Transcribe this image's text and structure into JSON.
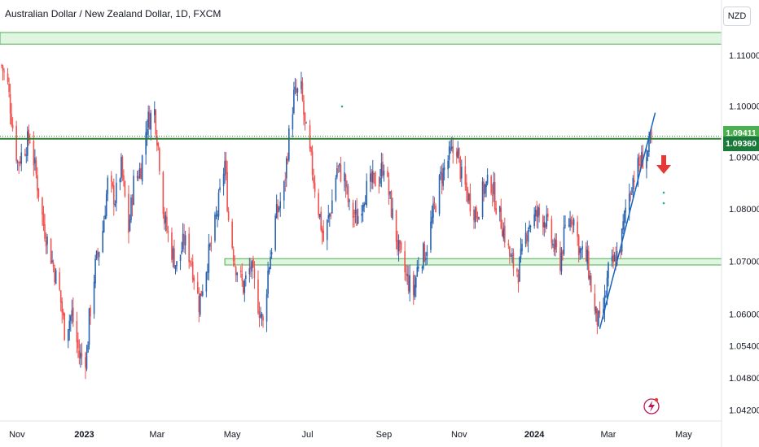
{
  "header": {
    "title": "Australian Dollar / New Zealand Dollar, 1D, FXCM",
    "currency_button": "NZD"
  },
  "colors": {
    "up": "#2a64b0",
    "down": "#ef5350",
    "zone_fill": "#dff5df",
    "zone_stroke": "#4caf50",
    "resistance_line": "#2e7d32",
    "trendline": "#1565c0",
    "arrow": "#e53935",
    "label_green_light": "#4caf50",
    "label_green_dark": "#1b7a3a"
  },
  "chart_data": {
    "type": "candlestick",
    "symbol": "AUDNZD",
    "timeframe": "1D",
    "source": "FXCM",
    "price_scale": "log",
    "y_range": [
      1.042,
      1.115
    ],
    "y_ticks": [
      "1.11000",
      "1.10000",
      "1.09000",
      "1.08000",
      "1.07000",
      "1.06000",
      "1.05400",
      "1.04800",
      "1.04200"
    ],
    "x_ticks": [
      {
        "label": "Nov",
        "date": "2022-11-01",
        "bold": false
      },
      {
        "label": "2023",
        "date": "2023-01-01",
        "bold": true
      },
      {
        "label": "Mar",
        "date": "2023-03-01",
        "bold": false
      },
      {
        "label": "May",
        "date": "2023-05-01",
        "bold": false
      },
      {
        "label": "Jul",
        "date": "2023-07-01",
        "bold": false
      },
      {
        "label": "Sep",
        "date": "2023-09-01",
        "bold": false
      },
      {
        "label": "Nov",
        "date": "2023-11-01",
        "bold": false
      },
      {
        "label": "2024",
        "date": "2024-01-01",
        "bold": true
      },
      {
        "label": "Mar",
        "date": "2024-03-01",
        "bold": false
      },
      {
        "label": "May",
        "date": "2024-05-01",
        "bold": false
      }
    ],
    "price_labels": [
      {
        "value": "1.09411",
        "style": "light"
      },
      {
        "value": "1.09360",
        "style": "dark"
      }
    ],
    "zones": [
      {
        "top": 1.1145,
        "bottom": 1.1122
      },
      {
        "top": 1.0705,
        "bottom": 1.0693
      }
    ],
    "horizontal_line": 1.0936,
    "trendline": {
      "from": [
        "2024-02-23",
        1.0572
      ],
      "to": [
        "2024-04-08",
        1.0987
      ]
    },
    "close_path": [
      [
        "2022-10-26",
        1.108
      ],
      [
        "2022-10-31",
        1.104
      ],
      [
        "2022-11-04",
        1.096
      ],
      [
        "2022-11-08",
        1.089
      ],
      [
        "2022-11-14",
        1.092
      ],
      [
        "2022-11-18",
        1.094
      ],
      [
        "2022-11-22",
        1.088
      ],
      [
        "2022-11-29",
        1.077
      ],
      [
        "2022-12-06",
        1.07
      ],
      [
        "2022-12-12",
        1.064
      ],
      [
        "2022-12-16",
        1.057
      ],
      [
        "2022-12-22",
        1.06
      ],
      [
        "2022-12-28",
        1.052
      ],
      [
        "2023-01-03",
        1.052
      ],
      [
        "2023-01-05",
        1.059
      ],
      [
        "2023-01-10",
        1.069
      ],
      [
        "2023-01-16",
        1.076
      ],
      [
        "2023-01-20",
        1.085
      ],
      [
        "2023-01-26",
        1.082
      ],
      [
        "2023-01-31",
        1.088
      ],
      [
        "2023-02-06",
        1.076
      ],
      [
        "2023-02-10",
        1.085
      ],
      [
        "2023-02-16",
        1.088
      ],
      [
        "2023-02-21",
        1.097
      ],
      [
        "2023-02-27",
        1.099
      ],
      [
        "2023-03-02",
        1.092
      ],
      [
        "2023-03-07",
        1.078
      ],
      [
        "2023-03-13",
        1.072
      ],
      [
        "2023-03-17",
        1.069
      ],
      [
        "2023-03-23",
        1.074
      ],
      [
        "2023-03-29",
        1.07
      ],
      [
        "2023-04-04",
        1.062
      ],
      [
        "2023-04-10",
        1.069
      ],
      [
        "2023-04-18",
        1.078
      ],
      [
        "2023-04-25",
        1.089
      ],
      [
        "2023-04-28",
        1.078
      ],
      [
        "2023-05-03",
        1.07
      ],
      [
        "2023-05-10",
        1.065
      ],
      [
        "2023-05-16",
        1.069
      ],
      [
        "2023-05-22",
        1.062
      ],
      [
        "2023-05-26",
        1.058
      ],
      [
        "2023-05-30",
        1.068
      ],
      [
        "2023-06-05",
        1.078
      ],
      [
        "2023-06-12",
        1.084
      ],
      [
        "2023-06-16",
        1.094
      ],
      [
        "2023-06-20",
        1.102
      ],
      [
        "2023-06-26",
        1.103
      ],
      [
        "2023-06-29",
        1.096
      ],
      [
        "2023-07-04",
        1.089
      ],
      [
        "2023-07-10",
        1.08
      ],
      [
        "2023-07-14",
        1.074
      ],
      [
        "2023-07-20",
        1.08
      ],
      [
        "2023-07-25",
        1.088
      ],
      [
        "2023-07-31",
        1.086
      ],
      [
        "2023-08-04",
        1.08
      ],
      [
        "2023-08-10",
        1.078
      ],
      [
        "2023-08-16",
        1.083
      ],
      [
        "2023-08-22",
        1.085
      ],
      [
        "2023-08-28",
        1.086
      ],
      [
        "2023-09-01",
        1.089
      ],
      [
        "2023-09-07",
        1.08
      ],
      [
        "2023-09-13",
        1.072
      ],
      [
        "2023-09-19",
        1.067
      ],
      [
        "2023-09-25",
        1.064
      ],
      [
        "2023-09-29",
        1.07
      ],
      [
        "2023-10-05",
        1.072
      ],
      [
        "2023-10-11",
        1.079
      ],
      [
        "2023-10-17",
        1.086
      ],
      [
        "2023-10-24",
        1.09
      ],
      [
        "2023-10-30",
        1.092
      ],
      [
        "2023-11-03",
        1.086
      ],
      [
        "2023-11-09",
        1.082
      ],
      [
        "2023-11-15",
        1.079
      ],
      [
        "2023-11-21",
        1.084
      ],
      [
        "2023-11-27",
        1.085
      ],
      [
        "2023-12-01",
        1.081
      ],
      [
        "2023-12-07",
        1.076
      ],
      [
        "2023-12-13",
        1.07
      ],
      [
        "2023-12-19",
        1.068
      ],
      [
        "2023-12-27",
        1.077
      ],
      [
        "2024-01-04",
        1.079
      ],
      [
        "2024-01-10",
        1.078
      ],
      [
        "2024-01-16",
        1.073
      ],
      [
        "2024-01-22",
        1.07
      ],
      [
        "2024-01-26",
        1.076
      ],
      [
        "2024-02-01",
        1.079
      ],
      [
        "2024-02-07",
        1.072
      ],
      [
        "2024-02-13",
        1.07
      ],
      [
        "2024-02-19",
        1.06
      ],
      [
        "2024-02-23",
        1.058
      ],
      [
        "2024-02-27",
        1.062
      ],
      [
        "2024-03-01",
        1.068
      ],
      [
        "2024-03-06",
        1.07
      ],
      [
        "2024-03-11",
        1.073
      ],
      [
        "2024-03-15",
        1.08
      ],
      [
        "2024-03-21",
        1.086
      ],
      [
        "2024-03-27",
        1.089
      ],
      [
        "2024-04-02",
        1.091
      ],
      [
        "2024-04-05",
        1.0936
      ]
    ]
  }
}
